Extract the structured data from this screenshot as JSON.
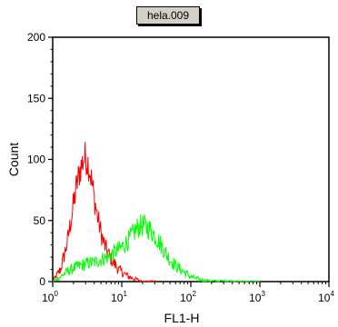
{
  "chart_data": {
    "type": "line",
    "title": "hela.009",
    "xlabel": "FL1-H",
    "ylabel": "Count",
    "xscale": "log",
    "xlim": [
      1,
      10000
    ],
    "ylim": [
      0,
      200
    ],
    "x_ticks": [
      {
        "base": "10",
        "exp": "0"
      },
      {
        "base": "10",
        "exp": "1"
      },
      {
        "base": "10",
        "exp": "2"
      },
      {
        "base": "10",
        "exp": "3"
      },
      {
        "base": "10",
        "exp": "4"
      }
    ],
    "y_ticks": [
      "0",
      "50",
      "100",
      "150",
      "200"
    ],
    "grid": false,
    "series": [
      {
        "color": "#ff0000",
        "x": [
          1.0,
          1.3,
          1.6,
          1.9,
          2.2,
          2.5,
          2.8,
          3.0,
          3.3,
          3.6,
          4.0,
          4.5,
          5.0,
          5.6,
          6.3,
          7.1,
          8.0,
          9.0,
          10.0,
          11.2,
          12.6,
          14.1,
          15.8,
          17.8,
          20.0,
          25.1,
          31.6
        ],
        "y": [
          0,
          10,
          30,
          55,
          78,
          92,
          100,
          102,
          96,
          85,
          68,
          52,
          40,
          30,
          24,
          18,
          14,
          10,
          8,
          6,
          4,
          3,
          2,
          1,
          0,
          0,
          0
        ]
      },
      {
        "color": "#00ff00",
        "x": [
          1.0,
          1.3,
          1.6,
          2.0,
          2.5,
          3.2,
          4.0,
          5.0,
          6.3,
          7.9,
          10.0,
          12.6,
          14.1,
          15.8,
          17.8,
          20.0,
          22.4,
          25.1,
          28.2,
          31.6,
          35.5,
          39.8,
          44.7,
          50.1,
          63.1,
          79.4,
          100,
          126,
          158,
          200,
          316,
          501,
          1000
        ],
        "y": [
          0,
          4,
          8,
          11,
          13,
          15,
          16,
          18,
          20,
          24,
          28,
          34,
          38,
          42,
          45,
          46,
          45,
          43,
          40,
          36,
          32,
          27,
          22,
          18,
          12,
          8,
          4,
          2,
          1,
          0.5,
          0.5,
          0,
          0
        ]
      }
    ]
  }
}
